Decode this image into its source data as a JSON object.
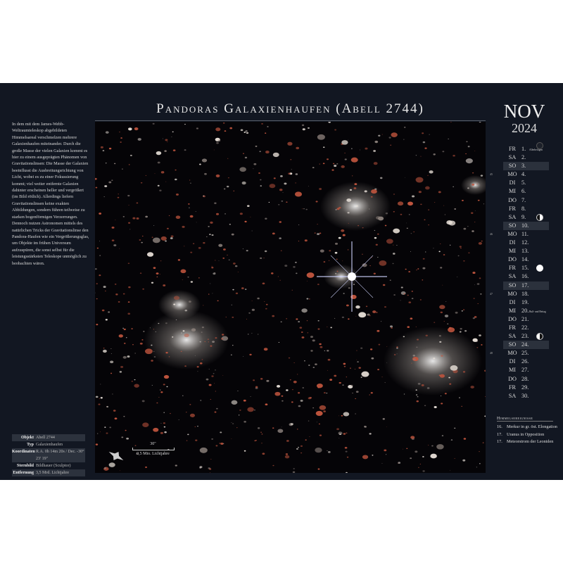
{
  "title": "Pandoras Galaxienhaufen (Abell 2744)",
  "description": "In dem mit dem James-Webb-Weltraumteleskop abgebildeten Himmelsareal verschmelzen mehrere Galaxienhaufen miteinander. Durch die große Masse der vielen Galaxien kommt es hier zu einem ausgeprägten Phänomen von Gravitationslinsen: Die Masse der Galaxien beeinflusst die Ausbreitungsrichtung von Licht, wobei es zu einer Fokussierung kommt; viel weiter entfernte Galaxien dahinter erscheinen heller und vergrößert (im Bild rötlich). Allerdings liefern Gravitationslinsen keine exakten Abbildungen, sondern führen teilweise zu starken bogenförmigen Verzerrungen. Dennoch nutzen Astronomen mittels des natürlichen Tricks der Gravitationslinse den Pandora-Haufen wie ein Vergrößerungsglas, um Objekte im frühen Universum aufzuspüren, die sonst selbst für die leistungsstärksten Teleskope unmöglich zu beobachten wären.",
  "info": [
    {
      "k": "Objekt",
      "v": "Abell 2744"
    },
    {
      "k": "Typ",
      "v": "Galaxienhaufen"
    },
    {
      "k": "Koordinaten",
      "v": "R.A. 0h 14m 20s / Dec. -30° 23' 19\""
    },
    {
      "k": "Sternbild",
      "v": "Bildhauer (Sculptor)"
    },
    {
      "k": "Entfernung",
      "v": "3,5 Mrd. Lichtjahre"
    }
  ],
  "scale": {
    "angle": "30\"",
    "distance": "0,5 Mio. Lichtjahre"
  },
  "calendar": {
    "month": "NOV",
    "year": "2024",
    "days": [
      [
        "FR",
        "1.",
        "",
        "Allerheiligen",
        "new"
      ],
      [
        "SA",
        "2."
      ],
      [
        "SO",
        "3."
      ],
      [
        "MO",
        "4.",
        "45"
      ],
      [
        "DI",
        "5."
      ],
      [
        "MI",
        "6."
      ],
      [
        "DO",
        "7."
      ],
      [
        "FR",
        "8."
      ],
      [
        "SA",
        "9.",
        "",
        "",
        "first"
      ],
      [
        "SO",
        "10."
      ],
      [
        "MO",
        "11.",
        "46"
      ],
      [
        "DI",
        "12."
      ],
      [
        "MI",
        "13."
      ],
      [
        "DO",
        "14."
      ],
      [
        "FR",
        "15.",
        "",
        "",
        "full"
      ],
      [
        "SA",
        "16."
      ],
      [
        "SO",
        "17."
      ],
      [
        "MO",
        "18.",
        "47"
      ],
      [
        "DI",
        "19."
      ],
      [
        "MI",
        "20.",
        "",
        "Buß- und Bettag"
      ],
      [
        "DO",
        "21."
      ],
      [
        "FR",
        "22."
      ],
      [
        "SA",
        "23.",
        "",
        "",
        "last"
      ],
      [
        "SO",
        "24."
      ],
      [
        "MO",
        "25.",
        "48"
      ],
      [
        "DI",
        "26."
      ],
      [
        "MI",
        "27."
      ],
      [
        "DO",
        "28."
      ],
      [
        "FR",
        "29."
      ],
      [
        "SA",
        "30."
      ]
    ]
  },
  "events": {
    "title": "Himmelsereignisse",
    "items": [
      {
        "d": "16.",
        "t": "Merkur in gr. öst. Elongation"
      },
      {
        "d": "17.",
        "t": "Uranus in Opposition"
      },
      {
        "d": "17.",
        "t": "Meteorstrom der Leoniden"
      }
    ]
  }
}
